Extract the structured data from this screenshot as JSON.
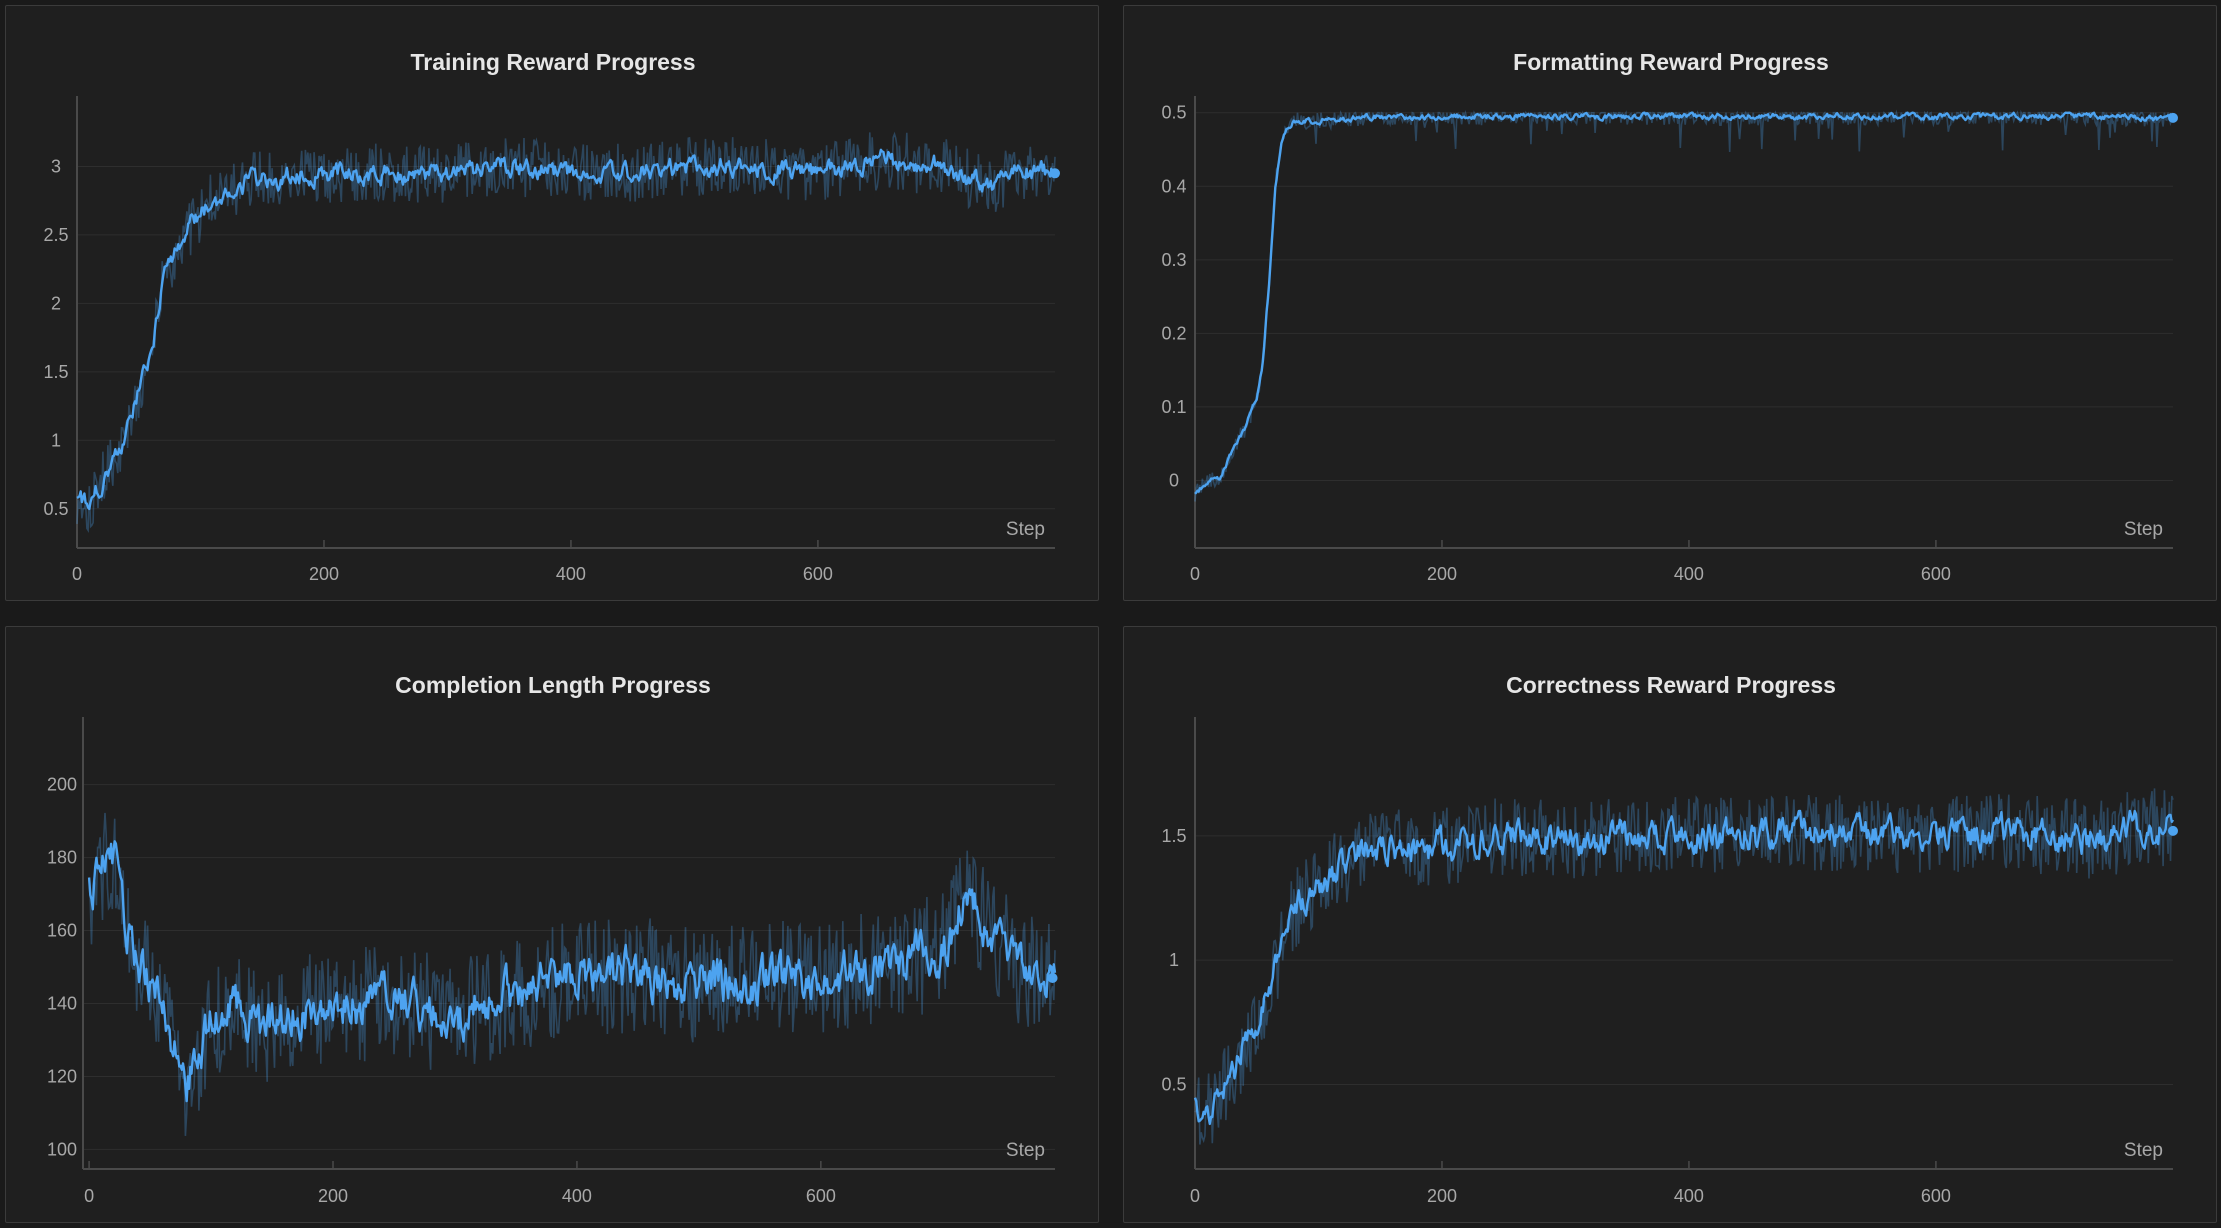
{
  "chart_data": [
    {
      "type": "line",
      "title": "Training Reward Progress",
      "xlabel": "Step",
      "ylabel": "",
      "xlim": [
        0,
        792
      ],
      "ylim": [
        0.25,
        3.5
      ],
      "xticks": [
        0,
        200,
        400,
        600
      ],
      "xtick_labels": [
        "0",
        "200",
        "400",
        "600"
      ],
      "yticks": [
        0.5,
        1,
        1.5,
        2,
        2.5,
        3
      ],
      "ytick_labels": [
        "0.5",
        "1",
        "1.5",
        "2",
        "2.5",
        "3"
      ],
      "grid": true,
      "color": "#4da3f0",
      "series": [
        {
          "x": [
            0,
            10,
            20,
            30,
            40,
            50,
            60,
            70,
            80,
            90,
            100,
            110,
            120,
            140,
            160,
            180,
            200,
            250,
            300,
            350,
            400,
            450,
            500,
            550,
            600,
            650,
            700,
            740,
            760,
            792
          ],
          "values": [
            0.55,
            0.55,
            0.7,
            0.85,
            1.05,
            1.35,
            1.65,
            2.15,
            2.4,
            2.55,
            2.65,
            2.75,
            2.8,
            2.9,
            2.9,
            2.95,
            2.95,
            2.95,
            2.95,
            3.0,
            2.95,
            2.95,
            3.0,
            3.0,
            2.95,
            3.05,
            3.0,
            2.85,
            2.95,
            2.95
          ]
        }
      ]
    },
    {
      "type": "line",
      "title": "Formatting Reward Progress",
      "xlabel": "Step",
      "ylabel": "",
      "xlim": [
        0,
        792
      ],
      "ylim": [
        -0.085,
        0.52
      ],
      "xticks": [
        0,
        200,
        400,
        600
      ],
      "xtick_labels": [
        "0",
        "200",
        "400",
        "600"
      ],
      "yticks": [
        0,
        0.1,
        0.2,
        0.3,
        0.4,
        0.5
      ],
      "ytick_labels": [
        "0",
        "0.1",
        "0.2",
        "0.3",
        "0.4",
        "0.5"
      ],
      "grid": true,
      "color": "#4da3f0",
      "series": [
        {
          "x": [
            0,
            10,
            20,
            30,
            40,
            50,
            55,
            60,
            65,
            70,
            75,
            80,
            90,
            100,
            150,
            200,
            300,
            400,
            500,
            600,
            700,
            792
          ],
          "values": [
            -0.02,
            0.0,
            0.0,
            0.04,
            0.07,
            0.11,
            0.16,
            0.27,
            0.4,
            0.46,
            0.48,
            0.49,
            0.49,
            0.49,
            0.495,
            0.495,
            0.495,
            0.495,
            0.495,
            0.495,
            0.495,
            0.493
          ]
        }
      ]
    },
    {
      "type": "line",
      "title": "Completion Length Progress",
      "xlabel": "Step",
      "ylabel": "",
      "xlim": [
        -5,
        792
      ],
      "ylim": [
        96,
        218
      ],
      "xticks": [
        0,
        200,
        400,
        600
      ],
      "xtick_labels": [
        "0",
        "200",
        "400",
        "600"
      ],
      "yticks": [
        100,
        120,
        140,
        160,
        180,
        200
      ],
      "ytick_labels": [
        "100",
        "120",
        "140",
        "160",
        "180",
        "200"
      ],
      "grid": true,
      "color": "#4da3f0",
      "series": [
        {
          "x": [
            0,
            10,
            20,
            30,
            40,
            50,
            60,
            70,
            80,
            90,
            100,
            120,
            140,
            160,
            200,
            250,
            300,
            350,
            400,
            450,
            500,
            550,
            600,
            650,
            700,
            720,
            740,
            760,
            790
          ],
          "values": [
            170,
            178,
            182,
            162,
            152,
            145,
            140,
            128,
            118,
            125,
            135,
            140,
            132,
            138,
            138,
            142,
            135,
            143,
            147,
            148,
            145,
            146,
            148,
            149,
            155,
            170,
            160,
            150,
            147
          ]
        }
      ]
    },
    {
      "type": "line",
      "title": "Correctness Reward Progress",
      "xlabel": "Step",
      "ylabel": "",
      "xlim": [
        0,
        792
      ],
      "ylim": [
        0.18,
        1.97
      ],
      "xticks": [
        0,
        200,
        400,
        600
      ],
      "xtick_labels": [
        "0",
        "200",
        "400",
        "600"
      ],
      "yticks": [
        0.5,
        1,
        1.5
      ],
      "ytick_labels": [
        "0.5",
        "1",
        "1.5"
      ],
      "grid": true,
      "color": "#4da3f0",
      "series": [
        {
          "x": [
            0,
            10,
            20,
            30,
            40,
            50,
            60,
            70,
            80,
            90,
            100,
            120,
            140,
            160,
            200,
            250,
            300,
            350,
            400,
            450,
            500,
            550,
            600,
            650,
            700,
            740,
            760,
            792
          ],
          "values": [
            0.4,
            0.4,
            0.45,
            0.55,
            0.65,
            0.75,
            0.85,
            1.05,
            1.2,
            1.25,
            1.3,
            1.38,
            1.45,
            1.45,
            1.45,
            1.5,
            1.48,
            1.5,
            1.5,
            1.5,
            1.52,
            1.5,
            1.5,
            1.52,
            1.5,
            1.48,
            1.55,
            1.52
          ]
        }
      ]
    }
  ]
}
